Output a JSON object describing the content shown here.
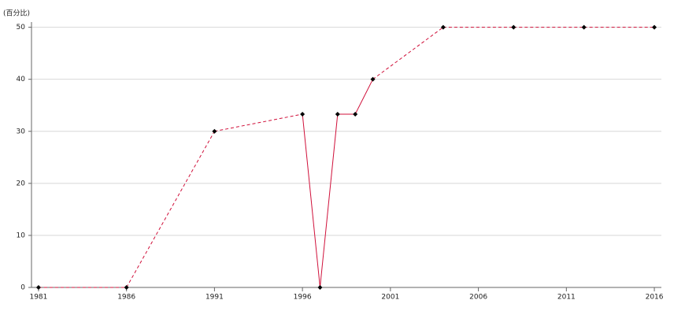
{
  "chart_data": {
    "type": "line",
    "y_label": "(百分比)",
    "x": [
      1981,
      1986,
      1991,
      1996,
      1997,
      1998,
      1999,
      2000,
      2004,
      2008,
      2012,
      2016
    ],
    "series": [
      {
        "color": "#d0103a",
        "values": [
          0,
          0,
          30,
          33.3,
          0,
          33.3,
          33.3,
          40,
          50,
          50,
          50,
          50
        ]
      }
    ],
    "xlim": [
      1980.6,
      2016.4
    ],
    "xticks": [
      1981,
      1986,
      1991,
      1996,
      2001,
      2006,
      2011,
      2016
    ],
    "ylim": [
      0,
      51
    ],
    "yticks": [
      0,
      10,
      20,
      30,
      40,
      50
    ],
    "grid": true,
    "marker_color": "#000000"
  }
}
